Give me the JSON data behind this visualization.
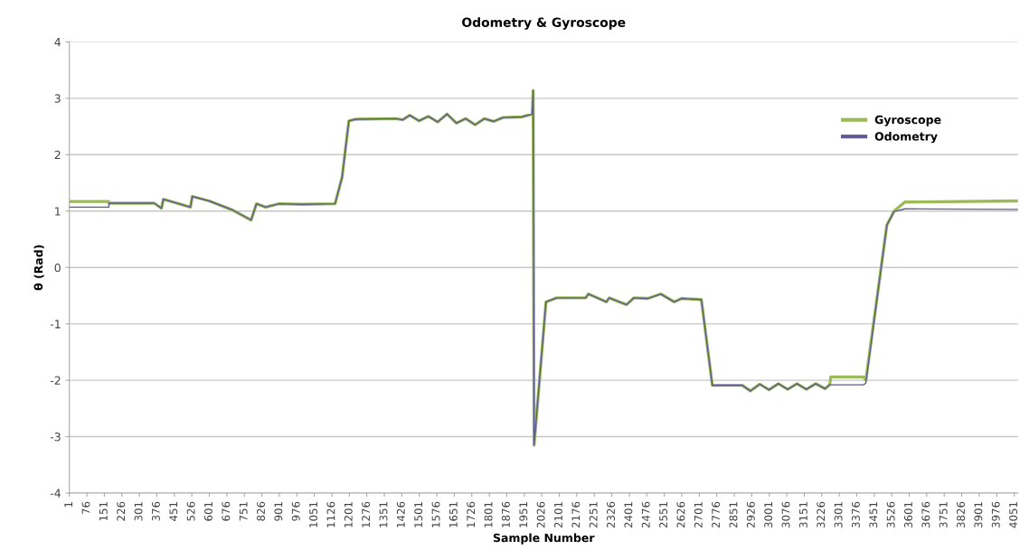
{
  "chart_data": {
    "type": "line",
    "title": "Odometry & Gyroscope",
    "xlabel": "Sample Number",
    "ylabel": "θ (Rad)",
    "xlim": [
      1,
      4067
    ],
    "xticks": [
      1,
      76,
      151,
      226,
      301,
      376,
      451,
      526,
      601,
      676,
      751,
      826,
      901,
      976,
      1051,
      1126,
      1201,
      1276,
      1351,
      1426,
      1501,
      1576,
      1651,
      1726,
      1801,
      1876,
      1951,
      2026,
      2101,
      2176,
      2251,
      2326,
      2401,
      2476,
      2551,
      2626,
      2701,
      2776,
      2851,
      2926,
      3001,
      3076,
      3151,
      3226,
      3301,
      3376,
      3451,
      3526,
      3601,
      3676,
      3751,
      3826,
      3901,
      3976,
      4051
    ],
    "ylim": [
      -4,
      4
    ],
    "yticks": [
      -4,
      -3,
      -2,
      -1,
      0,
      1,
      2,
      3,
      4
    ],
    "grid": "y",
    "legend": "top right",
    "marker": "none",
    "line_style": "solid",
    "series": [
      {
        "name": "Gyroscope",
        "color": "#9bbb59",
        "x": [
          1,
          170,
          171,
          365,
          396,
          404,
          520,
          528,
          600,
          700,
          780,
          803,
          842,
          900,
          1000,
          1140,
          1170,
          1199,
          1230,
          1400,
          1430,
          1460,
          1500,
          1540,
          1580,
          1620,
          1660,
          1700,
          1740,
          1780,
          1820,
          1860,
          1940,
          1985,
          1989,
          1993,
          2044,
          2090,
          2214,
          2226,
          2303,
          2315,
          2389,
          2420,
          2480,
          2536,
          2594,
          2625,
          2710,
          2757,
          2885,
          2920,
          2960,
          3000,
          3040,
          3080,
          3120,
          3160,
          3200,
          3240,
          3260,
          3265,
          3405,
          3415,
          3505,
          3536,
          3582,
          4067
        ],
        "values": [
          1.17,
          1.17,
          1.14,
          1.14,
          1.05,
          1.21,
          1.07,
          1.26,
          1.18,
          1.02,
          0.84,
          1.13,
          1.07,
          1.13,
          1.12,
          1.13,
          1.6,
          2.6,
          2.63,
          2.64,
          2.62,
          2.7,
          2.6,
          2.68,
          2.58,
          2.72,
          2.56,
          2.64,
          2.53,
          2.64,
          2.59,
          2.66,
          2.67,
          2.72,
          3.14,
          -3.15,
          -0.61,
          -0.54,
          -0.54,
          -0.47,
          -0.61,
          -0.54,
          -0.66,
          -0.54,
          -0.55,
          -0.47,
          -0.61,
          -0.55,
          -0.57,
          -2.09,
          -2.09,
          -2.19,
          -2.07,
          -2.17,
          -2.06,
          -2.16,
          -2.06,
          -2.16,
          -2.06,
          -2.15,
          -2.08,
          -1.94,
          -1.94,
          -2.0,
          0.75,
          1.0,
          1.16,
          1.18
        ]
      },
      {
        "name": "Odometry",
        "color": "#5f5b8f",
        "x": [
          1,
          170,
          171,
          365,
          396,
          404,
          520,
          528,
          600,
          700,
          780,
          803,
          842,
          900,
          1000,
          1140,
          1170,
          1199,
          1230,
          1400,
          1430,
          1460,
          1500,
          1540,
          1580,
          1620,
          1660,
          1700,
          1740,
          1780,
          1820,
          1860,
          1940,
          1985,
          1989,
          1993,
          2044,
          2090,
          2214,
          2226,
          2303,
          2315,
          2389,
          2420,
          2480,
          2536,
          2594,
          2625,
          2710,
          2757,
          2885,
          2920,
          2960,
          3000,
          3040,
          3080,
          3120,
          3160,
          3200,
          3240,
          3260,
          3405,
          3415,
          3505,
          3536,
          3582,
          4067
        ],
        "values": [
          1.07,
          1.07,
          1.14,
          1.14,
          1.05,
          1.21,
          1.07,
          1.26,
          1.18,
          1.02,
          0.84,
          1.13,
          1.07,
          1.13,
          1.12,
          1.13,
          1.6,
          2.6,
          2.63,
          2.64,
          2.62,
          2.7,
          2.6,
          2.68,
          2.58,
          2.72,
          2.56,
          2.64,
          2.53,
          2.64,
          2.59,
          2.66,
          2.67,
          2.72,
          3.14,
          -3.15,
          -0.61,
          -0.54,
          -0.54,
          -0.47,
          -0.61,
          -0.54,
          -0.66,
          -0.54,
          -0.55,
          -0.47,
          -0.61,
          -0.55,
          -0.57,
          -2.09,
          -2.09,
          -2.19,
          -2.07,
          -2.17,
          -2.06,
          -2.16,
          -2.06,
          -2.16,
          -2.06,
          -2.15,
          -2.08,
          -2.08,
          -2.05,
          0.75,
          0.99,
          1.04,
          1.03
        ]
      }
    ]
  }
}
